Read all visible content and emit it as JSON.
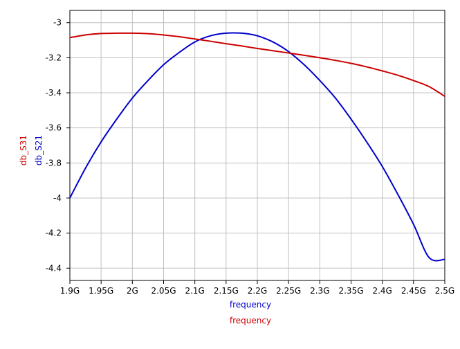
{
  "chart_data": {
    "type": "line",
    "xlabel": [
      "frequency",
      "frequency"
    ],
    "ylabel": [
      "db_S21",
      "db_S31"
    ],
    "xlim": [
      1.9,
      2.5
    ],
    "ylim": [
      -4.47,
      -2.93
    ],
    "x_ticks": [
      1.9,
      1.95,
      2.0,
      2.05,
      2.1,
      2.15,
      2.2,
      2.25,
      2.3,
      2.35,
      2.4,
      2.45,
      2.5
    ],
    "x_tick_labels": [
      "1.9G",
      "1.95G",
      "2G",
      "2.05G",
      "2.1G",
      "2.15G",
      "2.2G",
      "2.25G",
      "2.3G",
      "2.35G",
      "2.4G",
      "2.45G",
      "2.5G"
    ],
    "y_ticks": [
      -3.0,
      -3.2,
      -3.4,
      -3.6,
      -3.8,
      -4.0,
      -4.2,
      -4.4
    ],
    "y_tick_labels": [
      "-3",
      "-3.2",
      "-3.4",
      "-3.6",
      "-3.8",
      "-4",
      "-4.2",
      "-4.4"
    ],
    "grid": true,
    "series": [
      {
        "name": "db_S21",
        "color": "#0000cc",
        "x": [
          1.9,
          1.925,
          1.95,
          1.975,
          2.0,
          2.025,
          2.05,
          2.075,
          2.1,
          2.125,
          2.15,
          2.175,
          2.2,
          2.225,
          2.25,
          2.275,
          2.3,
          2.325,
          2.35,
          2.375,
          2.4,
          2.425,
          2.45,
          2.475,
          2.5
        ],
        "values": [
          -4.0,
          -3.83,
          -3.68,
          -3.55,
          -3.43,
          -3.33,
          -3.24,
          -3.17,
          -3.11,
          -3.075,
          -3.06,
          -3.06,
          -3.075,
          -3.11,
          -3.165,
          -3.24,
          -3.33,
          -3.43,
          -3.55,
          -3.68,
          -3.82,
          -3.98,
          -4.15,
          -4.34,
          -4.35
        ]
      },
      {
        "name": "db_S31",
        "color": "#cc0000",
        "x": [
          1.9,
          1.925,
          1.95,
          1.975,
          2.0,
          2.025,
          2.05,
          2.075,
          2.1,
          2.125,
          2.15,
          2.175,
          2.2,
          2.225,
          2.25,
          2.275,
          2.3,
          2.325,
          2.35,
          2.375,
          2.4,
          2.425,
          2.45,
          2.475,
          2.5
        ],
        "values": [
          -3.085,
          -3.07,
          -3.062,
          -3.06,
          -3.06,
          -3.063,
          -3.07,
          -3.08,
          -3.093,
          -3.106,
          -3.12,
          -3.133,
          -3.147,
          -3.16,
          -3.173,
          -3.186,
          -3.2,
          -3.215,
          -3.232,
          -3.252,
          -3.275,
          -3.3,
          -3.33,
          -3.365,
          -3.42
        ]
      }
    ]
  }
}
